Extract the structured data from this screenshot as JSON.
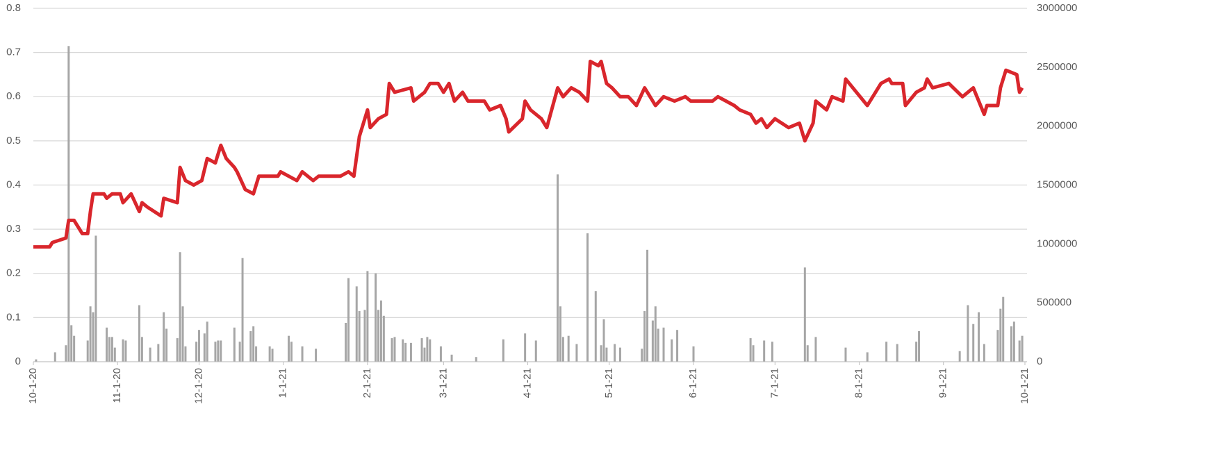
{
  "chart_data": {
    "type": "combo",
    "xlim": [
      "10-1-20",
      "10-1-21"
    ],
    "xticks": [
      "10-1-20",
      "11-1-20",
      "12-1-20",
      "1-1-21",
      "2-1-21",
      "3-1-21",
      "4-1-21",
      "5-1-21",
      "6-1-21",
      "7-1-21",
      "8-1-21",
      "9-1-21",
      "10-1-21"
    ],
    "ylim": [
      0,
      0.8
    ],
    "yticks": [
      0,
      0.1,
      0.2,
      0.3,
      0.4,
      0.5,
      0.6,
      0.7,
      0.8
    ],
    "y2lim": [
      0,
      3000000
    ],
    "y2ticks": [
      0,
      500000,
      1000000,
      1500000,
      2000000,
      2500000,
      3000000
    ],
    "grid": true,
    "series": [
      {
        "type": "bar",
        "axis": "y2",
        "color": "#a6a6a6",
        "x": [
          "10-2-20",
          "10-9-20",
          "10-13-20",
          "10-14-20",
          "10-15-20",
          "10-16-20",
          "10-21-20",
          "10-22-20",
          "10-23-20",
          "10-24-20",
          "10-28-20",
          "10-29-20",
          "10-30-20",
          "10-31-20",
          "11-3-20",
          "11-4-20",
          "11-9-20",
          "11-10-20",
          "11-13-20",
          "11-16-20",
          "11-18-20",
          "11-19-20",
          "11-23-20",
          "11-24-20",
          "11-25-20",
          "11-26-20",
          "11-30-20",
          "12-1-20",
          "12-3-20",
          "12-4-20",
          "12-7-20",
          "12-8-20",
          "12-9-20",
          "12-14-20",
          "12-16-20",
          "12-17-20",
          "12-20-20",
          "12-21-20",
          "12-22-20",
          "12-27-20",
          "12-28-20",
          "1-3-21",
          "1-4-21",
          "1-8-21",
          "1-13-21",
          "1-24-21",
          "1-25-21",
          "1-28-21",
          "1-29-21",
          "1-31-21",
          "2-1-21",
          "2-4-21",
          "2-5-21",
          "2-6-21",
          "2-7-21",
          "2-10-21",
          "2-11-21",
          "2-14-21",
          "2-15-21",
          "2-17-21",
          "2-21-21",
          "2-22-21",
          "2-23-21",
          "2-24-21",
          "2-28-21",
          "3-4-21",
          "3-13-21",
          "3-23-21",
          "3-31-21",
          "4-4-21",
          "4-12-21",
          "4-13-21",
          "4-14-21",
          "4-16-21",
          "4-19-21",
          "4-23-21",
          "4-26-21",
          "4-28-21",
          "4-29-21",
          "4-30-21",
          "5-3-21",
          "5-5-21",
          "5-13-21",
          "5-14-21",
          "5-15-21",
          "5-17-21",
          "5-18-21",
          "5-19-21",
          "5-21-21",
          "5-24-21",
          "5-26-21",
          "6-1-21",
          "6-22-21",
          "6-23-21",
          "6-27-21",
          "6-30-21",
          "7-12-21",
          "7-13-21",
          "7-16-21",
          "7-27-21",
          "8-4-21",
          "8-11-21",
          "8-15-21",
          "8-22-21",
          "8-23-21",
          "9-7-21",
          "9-10-21",
          "9-12-21",
          "9-14-21",
          "9-16-21",
          "9-21-21",
          "9-22-21",
          "9-23-21",
          "9-26-21",
          "9-27-21",
          "9-29-21",
          "9-30-21"
        ],
        "values": [
          20000,
          80000,
          140000,
          2680000,
          310000,
          220000,
          180000,
          470000,
          420000,
          1070000,
          290000,
          210000,
          210000,
          120000,
          190000,
          180000,
          480000,
          210000,
          120000,
          150000,
          420000,
          280000,
          200000,
          930000,
          470000,
          130000,
          170000,
          270000,
          240000,
          340000,
          170000,
          180000,
          180000,
          290000,
          170000,
          880000,
          260000,
          300000,
          130000,
          130000,
          110000,
          220000,
          170000,
          130000,
          110000,
          330000,
          710000,
          640000,
          430000,
          440000,
          770000,
          750000,
          440000,
          520000,
          390000,
          200000,
          210000,
          190000,
          160000,
          160000,
          200000,
          120000,
          210000,
          190000,
          130000,
          60000,
          40000,
          190000,
          240000,
          180000,
          1590000,
          470000,
          210000,
          220000,
          150000,
          1090000,
          600000,
          140000,
          360000,
          120000,
          150000,
          120000,
          110000,
          430000,
          950000,
          350000,
          470000,
          280000,
          290000,
          190000,
          270000,
          130000,
          200000,
          140000,
          180000,
          170000,
          800000,
          140000,
          210000,
          120000,
          80000,
          170000,
          150000,
          170000,
          260000,
          90000,
          480000,
          320000,
          420000,
          150000,
          270000,
          450000,
          550000,
          300000,
          340000,
          180000,
          220000
        ]
      },
      {
        "type": "line",
        "axis": "y",
        "color": "#d9262c",
        "x": [
          "10-1-20",
          "10-7-20",
          "10-8-20",
          "10-13-20",
          "10-14-20",
          "10-16-20",
          "10-19-20",
          "10-21-20",
          "10-22-20",
          "10-23-20",
          "10-27-20",
          "10-28-20",
          "10-30-20",
          "11-2-20",
          "11-3-20",
          "11-6-20",
          "11-9-20",
          "11-10-20",
          "11-12-20",
          "11-17-20",
          "11-18-20",
          "11-23-20",
          "11-24-20",
          "11-26-20",
          "11-29-20",
          "12-2-20",
          "12-4-20",
          "12-7-20",
          "12-9-20",
          "12-11-20",
          "12-14-20",
          "12-15-20",
          "12-18-20",
          "12-21-20",
          "12-23-20",
          "12-30-20",
          "12-31-20",
          "1-6-21",
          "1-8-21",
          "1-12-21",
          "1-14-21",
          "1-22-21",
          "1-25-21",
          "1-27-21",
          "1-29-21",
          "2-1-21",
          "2-2-21",
          "2-5-21",
          "2-8-21",
          "2-9-21",
          "2-11-21",
          "2-17-21",
          "2-18-21",
          "2-22-21",
          "2-24-21",
          "2-27-21",
          "3-1-21",
          "3-3-21",
          "3-5-21",
          "3-8-21",
          "3-10-21",
          "3-16-21",
          "3-18-21",
          "3-22-21",
          "3-24-21",
          "3-25-21",
          "3-30-21",
          "3-31-21",
          "4-2-21",
          "4-6-21",
          "4-8-21",
          "4-12-21",
          "4-14-21",
          "4-17-21",
          "4-20-21",
          "4-23-21",
          "4-24-21",
          "4-27-21",
          "4-28-21",
          "4-30-21",
          "5-2-21",
          "5-5-21",
          "5-8-21",
          "5-11-21",
          "5-14-21",
          "5-18-21",
          "5-21-21",
          "5-25-21",
          "5-29-21",
          "5-31-21",
          "6-8-21",
          "6-10-21",
          "6-16-21",
          "6-18-21",
          "6-22-21",
          "6-24-21",
          "6-26-21",
          "6-28-21",
          "7-1-21",
          "7-6-21",
          "7-10-21",
          "7-12-21",
          "7-15-21",
          "7-16-21",
          "7-20-21",
          "7-22-21",
          "7-26-21",
          "7-27-21",
          "7-31-21",
          "8-4-21",
          "8-9-21",
          "8-12-21",
          "8-13-21",
          "8-17-21",
          "8-18-21",
          "8-22-21",
          "8-25-21",
          "8-26-21",
          "8-28-21",
          "9-3-21",
          "9-8-21",
          "9-12-21",
          "9-16-21",
          "9-17-21",
          "9-21-21",
          "9-22-21",
          "9-24-21",
          "9-28-21",
          "9-29-21",
          "9-30-21"
        ],
        "values": [
          0.26,
          0.26,
          0.27,
          0.28,
          0.32,
          0.32,
          0.29,
          0.29,
          0.34,
          0.38,
          0.38,
          0.37,
          0.38,
          0.38,
          0.36,
          0.38,
          0.34,
          0.36,
          0.35,
          0.33,
          0.37,
          0.36,
          0.44,
          0.41,
          0.4,
          0.41,
          0.46,
          0.45,
          0.49,
          0.46,
          0.44,
          0.43,
          0.39,
          0.38,
          0.42,
          0.42,
          0.43,
          0.41,
          0.43,
          0.41,
          0.42,
          0.42,
          0.43,
          0.42,
          0.51,
          0.57,
          0.53,
          0.55,
          0.56,
          0.63,
          0.61,
          0.62,
          0.59,
          0.61,
          0.63,
          0.63,
          0.61,
          0.63,
          0.59,
          0.61,
          0.59,
          0.59,
          0.57,
          0.58,
          0.55,
          0.52,
          0.55,
          0.59,
          0.57,
          0.55,
          0.53,
          0.62,
          0.6,
          0.62,
          0.61,
          0.59,
          0.68,
          0.67,
          0.68,
          0.63,
          0.62,
          0.6,
          0.6,
          0.58,
          0.62,
          0.58,
          0.6,
          0.59,
          0.6,
          0.59,
          0.59,
          0.6,
          0.58,
          0.57,
          0.56,
          0.54,
          0.55,
          0.53,
          0.55,
          0.53,
          0.54,
          0.5,
          0.54,
          0.59,
          0.57,
          0.6,
          0.59,
          0.64,
          0.61,
          0.58,
          0.63,
          0.64,
          0.63,
          0.63,
          0.58,
          0.61,
          0.62,
          0.64,
          0.62,
          0.63,
          0.6,
          0.62,
          0.56,
          0.58,
          0.58,
          0.62,
          0.66,
          0.65,
          0.61,
          0.62
        ]
      }
    ]
  }
}
